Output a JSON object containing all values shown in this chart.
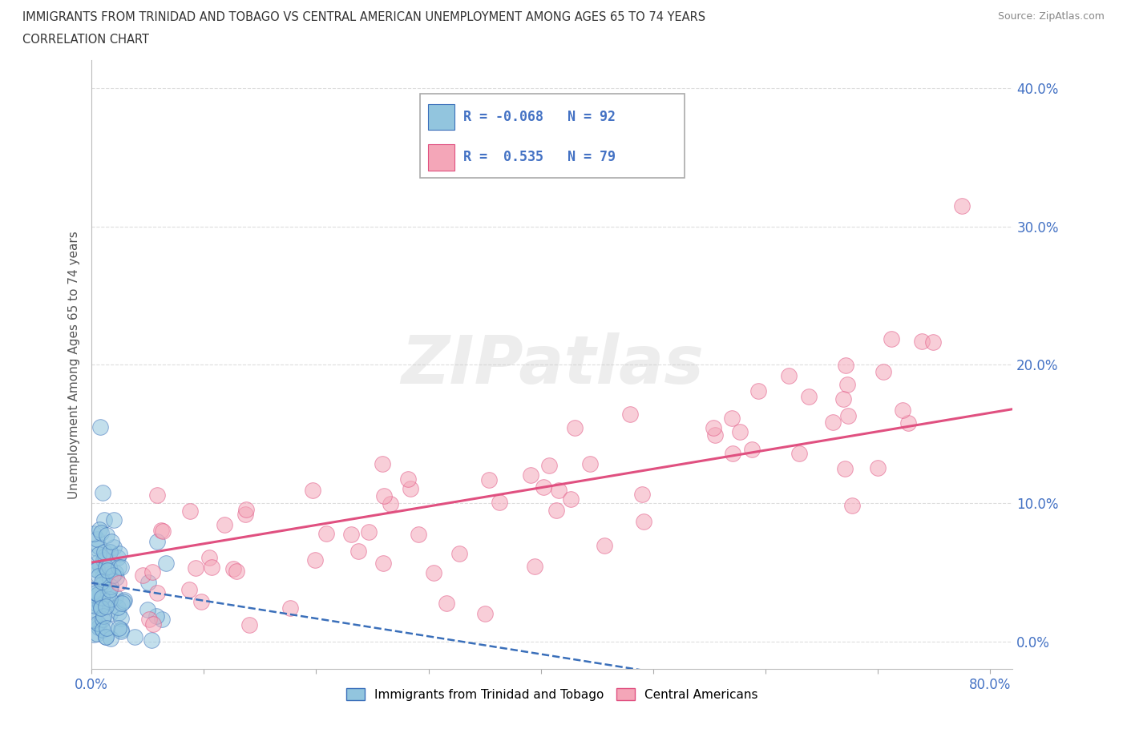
{
  "title_line1": "IMMIGRANTS FROM TRINIDAD AND TOBAGO VS CENTRAL AMERICAN UNEMPLOYMENT AMONG AGES 65 TO 74 YEARS",
  "title_line2": "CORRELATION CHART",
  "source_text": "Source: ZipAtlas.com",
  "ylabel": "Unemployment Among Ages 65 to 74 years",
  "xlim": [
    0.0,
    0.82
  ],
  "ylim": [
    -0.02,
    0.42
  ],
  "yticks": [
    0.0,
    0.1,
    0.2,
    0.3,
    0.4
  ],
  "yticklabels": [
    "0.0%",
    "10.0%",
    "20.0%",
    "30.0%",
    "40.0%"
  ],
  "xtick_positions": [
    0.0,
    0.1,
    0.2,
    0.3,
    0.4,
    0.5,
    0.6,
    0.7,
    0.8
  ],
  "xticklabels_shown": {
    "0.0": "0.0%",
    "0.80": "80.0%"
  },
  "legend1_label": "Immigrants from Trinidad and Tobago",
  "legend2_label": "Central Americans",
  "R1": -0.068,
  "N1": 92,
  "R2": 0.535,
  "N2": 79,
  "color_blue": "#92c5de",
  "color_pink": "#f4a6b8",
  "color_blue_line": "#3a6fba",
  "color_pink_line": "#e05080",
  "watermark": "ZIPatlas",
  "background_color": "#ffffff",
  "grid_color": "#dddddd"
}
